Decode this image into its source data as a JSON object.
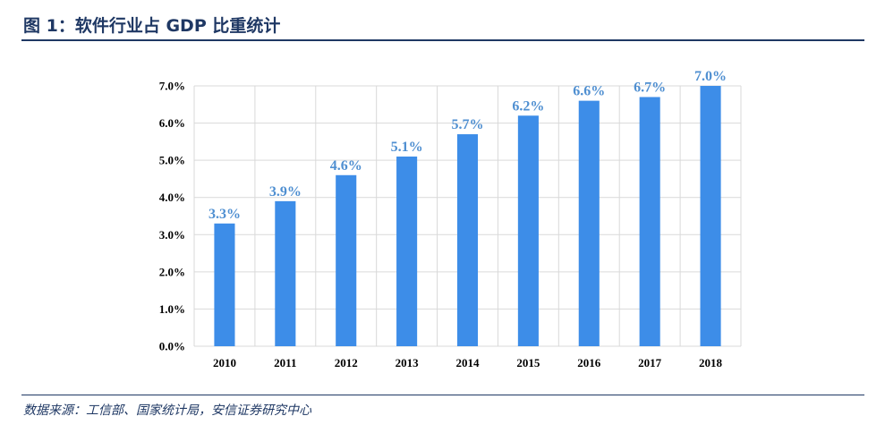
{
  "figure": {
    "title": "图 1：软件行业占 GDP 比重统计",
    "source": "数据来源：工信部、国家统计局，安信证券研究中心"
  },
  "colors": {
    "bar": "#3d8de8",
    "data_label": "#4f8fd1",
    "grid": "#d9d9d9",
    "rule": "#1f3864"
  },
  "chart_data": {
    "type": "bar",
    "title": "",
    "xlabel": "",
    "ylabel": "",
    "categories": [
      "2010",
      "2011",
      "2012",
      "2013",
      "2014",
      "2015",
      "2016",
      "2017",
      "2018"
    ],
    "values": [
      3.3,
      3.9,
      4.6,
      5.1,
      5.7,
      6.2,
      6.6,
      6.7,
      7.0
    ],
    "data_labels": [
      "3.3%",
      "3.9%",
      "4.6%",
      "5.1%",
      "5.7%",
      "6.2%",
      "6.6%",
      "6.7%",
      "7.0%"
    ],
    "ylim": [
      0,
      7
    ],
    "yticks": [
      0,
      1,
      2,
      3,
      4,
      5,
      6,
      7
    ],
    "ytick_labels": [
      "0.0%",
      "1.0%",
      "2.0%",
      "3.0%",
      "4.0%",
      "5.0%",
      "6.0%",
      "7.0%"
    ],
    "grid": true,
    "legend": false
  }
}
